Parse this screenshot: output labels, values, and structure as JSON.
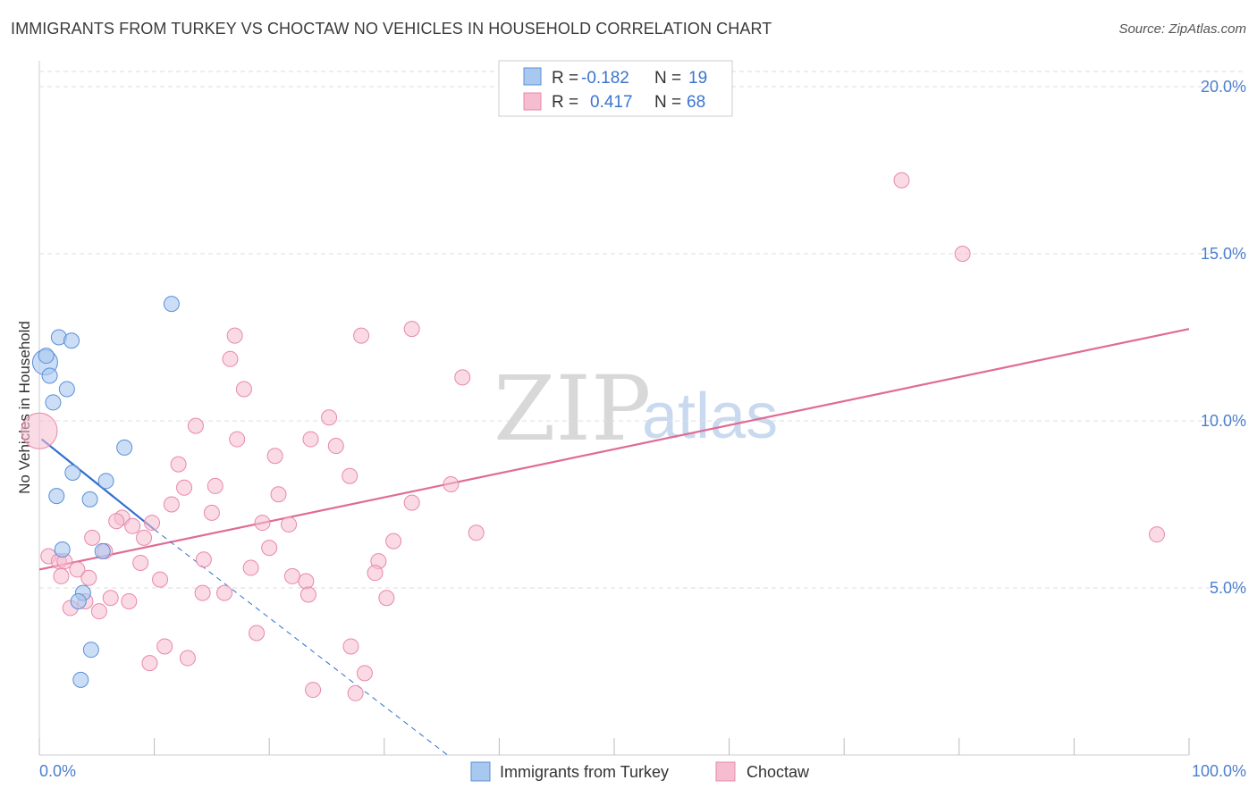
{
  "header": {
    "title": "IMMIGRANTS FROM TURKEY VS CHOCTAW NO VEHICLES IN HOUSEHOLD CORRELATION CHART",
    "source": "Source: ZipAtlas.com"
  },
  "watermark": {
    "zip": "ZIP",
    "atlas": "atlas"
  },
  "legend": {
    "rows": [
      {
        "r_label": "R =",
        "r_value": "-0.182",
        "n_label": "N =",
        "n_value": "19"
      },
      {
        "r_label": "R =",
        "r_value": "0.417",
        "n_label": "N =",
        "n_value": "68"
      }
    ]
  },
  "bottom_legend": {
    "series1": "Immigrants from Turkey",
    "series2": "Choctaw"
  },
  "colors": {
    "turkey_fill": "#a8c8f0",
    "turkey_stroke": "#5a8fd8",
    "turkey_line": "#2f6fd0",
    "choctaw_fill": "#f6bcd0",
    "choctaw_stroke": "#e888a8",
    "choctaw_line": "#e06b95",
    "grid": "#dddddd",
    "axis_text": "#4a7fcf"
  },
  "chart_data": {
    "type": "scatter",
    "title": "IMMIGRANTS FROM TURKEY VS CHOCTAW NO VEHICLES IN HOUSEHOLD CORRELATION CHART",
    "xlabel": "",
    "ylabel": "No Vehicles in Household",
    "xlim": [
      0,
      100
    ],
    "ylim": [
      0,
      20
    ],
    "x_tick_labels": [
      "0.0%",
      "100.0%"
    ],
    "y_ticks": [
      5,
      10,
      15,
      20
    ],
    "y_tick_labels": [
      "5.0%",
      "10.0%",
      "15.0%",
      "20.0%"
    ],
    "grid": true,
    "legend_position": "top-center",
    "series": [
      {
        "name": "Immigrants from Turkey",
        "r": -0.182,
        "n": 19,
        "points": [
          [
            0.5,
            11.75
          ],
          [
            0.6,
            11.95
          ],
          [
            0.9,
            11.35
          ],
          [
            1.7,
            12.5
          ],
          [
            2.8,
            12.4
          ],
          [
            11.5,
            13.5
          ],
          [
            1.2,
            10.55
          ],
          [
            2.4,
            10.95
          ],
          [
            7.4,
            9.2
          ],
          [
            2.9,
            8.45
          ],
          [
            5.8,
            8.2
          ],
          [
            1.5,
            7.75
          ],
          [
            4.4,
            7.65
          ],
          [
            2.0,
            6.15
          ],
          [
            5.5,
            6.1
          ],
          [
            3.8,
            4.85
          ],
          [
            3.4,
            4.6
          ],
          [
            4.5,
            3.15
          ],
          [
            3.6,
            2.25
          ]
        ],
        "trend_solid": {
          "x0": 0.2,
          "y0": 9.45,
          "x1": 10.0,
          "y1": 6.75
        },
        "trend_dashed": {
          "x0": 10.0,
          "y0": 6.75,
          "x1": 35.5,
          "y1": 0.0
        }
      },
      {
        "name": "Choctaw",
        "r": 0.417,
        "n": 68,
        "points": [
          [
            75.0,
            17.2
          ],
          [
            80.3,
            15.0
          ],
          [
            17.0,
            12.55
          ],
          [
            28.0,
            12.55
          ],
          [
            32.4,
            12.75
          ],
          [
            16.6,
            11.85
          ],
          [
            36.8,
            11.3
          ],
          [
            17.8,
            10.95
          ],
          [
            25.2,
            10.1
          ],
          [
            13.6,
            9.85
          ],
          [
            0.0,
            9.7
          ],
          [
            17.2,
            9.45
          ],
          [
            23.6,
            9.45
          ],
          [
            25.8,
            9.25
          ],
          [
            20.5,
            8.95
          ],
          [
            12.1,
            8.7
          ],
          [
            27.0,
            8.35
          ],
          [
            15.3,
            8.05
          ],
          [
            12.6,
            8.0
          ],
          [
            35.8,
            8.1
          ],
          [
            20.8,
            7.8
          ],
          [
            11.5,
            7.5
          ],
          [
            32.4,
            7.55
          ],
          [
            15.0,
            7.25
          ],
          [
            7.2,
            7.1
          ],
          [
            6.7,
            7.0
          ],
          [
            9.8,
            6.95
          ],
          [
            19.4,
            6.95
          ],
          [
            21.7,
            6.9
          ],
          [
            8.1,
            6.85
          ],
          [
            38.0,
            6.65
          ],
          [
            97.2,
            6.6
          ],
          [
            4.6,
            6.5
          ],
          [
            9.1,
            6.5
          ],
          [
            30.8,
            6.4
          ],
          [
            20.0,
            6.2
          ],
          [
            5.7,
            6.1
          ],
          [
            0.8,
            5.95
          ],
          [
            1.7,
            5.8
          ],
          [
            2.2,
            5.8
          ],
          [
            14.3,
            5.85
          ],
          [
            29.5,
            5.8
          ],
          [
            8.8,
            5.75
          ],
          [
            18.4,
            5.6
          ],
          [
            3.3,
            5.55
          ],
          [
            29.2,
            5.45
          ],
          [
            22.0,
            5.35
          ],
          [
            1.9,
            5.35
          ],
          [
            4.3,
            5.3
          ],
          [
            10.5,
            5.25
          ],
          [
            23.2,
            5.2
          ],
          [
            14.2,
            4.85
          ],
          [
            16.1,
            4.85
          ],
          [
            23.4,
            4.8
          ],
          [
            30.2,
            4.7
          ],
          [
            6.2,
            4.7
          ],
          [
            7.8,
            4.6
          ],
          [
            4.0,
            4.6
          ],
          [
            2.7,
            4.4
          ],
          [
            5.2,
            4.3
          ],
          [
            18.9,
            3.65
          ],
          [
            27.1,
            3.25
          ],
          [
            10.9,
            3.25
          ],
          [
            12.9,
            2.9
          ],
          [
            9.6,
            2.75
          ],
          [
            28.3,
            2.45
          ],
          [
            23.8,
            1.95
          ],
          [
            27.5,
            1.85
          ]
        ],
        "trend_solid": {
          "x0": 0.0,
          "y0": 5.55,
          "x1": 100.0,
          "y1": 12.75
        }
      }
    ]
  }
}
